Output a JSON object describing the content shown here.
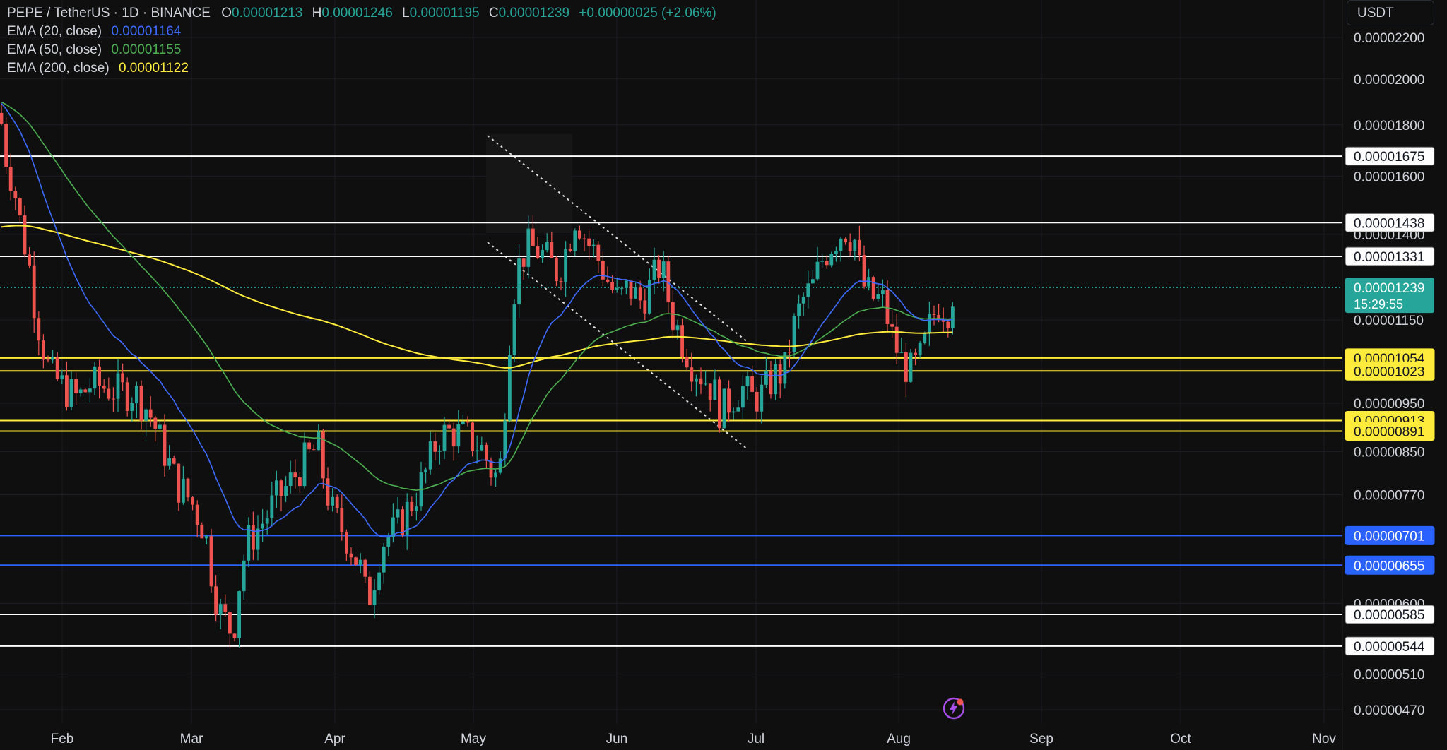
{
  "header": {
    "symbol": "PEPE / TetherUS · 1D · BINANCE",
    "ohlc": [
      {
        "k": "O",
        "v": "0.00001213"
      },
      {
        "k": "H",
        "v": "0.00001246"
      },
      {
        "k": "L",
        "v": "0.00001195"
      },
      {
        "k": "C",
        "v": "0.00001239"
      }
    ],
    "change": "+0.00000025 (+2.06%)",
    "change_color": "#26a69a"
  },
  "indicators": [
    {
      "label": "EMA (20, close)",
      "value": "0.00001164",
      "color": "#3d6bff"
    },
    {
      "label": "EMA (50, close)",
      "value": "0.00001155",
      "color": "#4caf50"
    },
    {
      "label": "EMA (200, close)",
      "value": "0.00001122",
      "color": "#ffeb3b"
    }
  ],
  "currency_button": "USDT",
  "flash_icon": "lightning-icon",
  "chart_data": {
    "type": "candlestick",
    "x_axis": [
      "Feb",
      "Mar",
      "Apr",
      "May",
      "Jun",
      "Jul",
      "Aug",
      "Sep",
      "Oct",
      "Nov"
    ],
    "y_axis": [
      "0.00002200",
      "0.00002000",
      "0.00001800",
      "0.00001600",
      "0.00001400",
      "0.00001150",
      "0.00000950",
      "0.00000850",
      "0.00000770",
      "0.00000600",
      "0.00000510",
      "0.00000470"
    ],
    "y_scale": "log",
    "last_price": "0.00001239",
    "countdown": "15:29:55",
    "levels": [
      {
        "value": "0.00001675",
        "color": "#ffffff"
      },
      {
        "value": "0.00001438",
        "color": "#ffffff"
      },
      {
        "value": "0.00001331",
        "color": "#ffffff"
      },
      {
        "value": "0.00001054",
        "color": "#ffeb3b"
      },
      {
        "value": "0.00001023",
        "color": "#ffeb3b"
      },
      {
        "value": "0.00000913",
        "color": "#ffeb3b"
      },
      {
        "value": "0.00000891",
        "color": "#ffeb3b"
      },
      {
        "value": "0.00000701",
        "color": "#2962ff"
      },
      {
        "value": "0.00000655",
        "color": "#2962ff"
      },
      {
        "value": "0.00000585",
        "color": "#ffffff"
      },
      {
        "value": "0.00000544",
        "color": "#ffffff"
      }
    ],
    "up_color": "#26a69a",
    "down_color": "#ef5350"
  }
}
